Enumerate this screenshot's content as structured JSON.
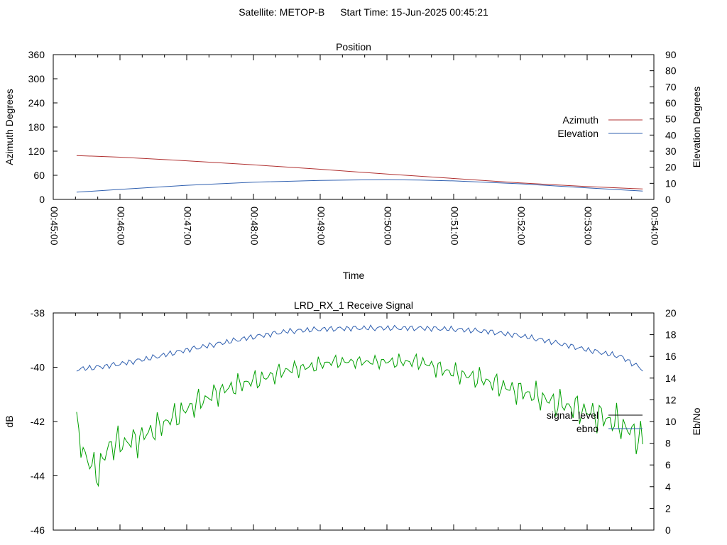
{
  "header": {
    "satellite": "Satellite: METOP-B",
    "start_time": "Start Time: 15-Jun-2025 00:45:21"
  },
  "chart_data": [
    {
      "type": "line",
      "title": "Position",
      "xlabel": "Time",
      "ylabel": "Azimuth Degrees",
      "y2label": "Elevation Degrees",
      "x_ticks": [
        "00:45:00",
        "00:46:00",
        "00:47:00",
        "00:48:00",
        "00:49:00",
        "00:50:00",
        "00:51:00",
        "00:52:00",
        "00:53:00",
        "00:54:00"
      ],
      "xlim": [
        "00:45:00",
        "00:54:00"
      ],
      "ylim": [
        0,
        360
      ],
      "y_ticks": [
        0,
        60,
        120,
        180,
        240,
        300,
        360
      ],
      "y2lim": [
        0,
        90
      ],
      "y2_ticks": [
        0,
        10,
        20,
        30,
        40,
        50,
        60,
        70,
        80,
        90
      ],
      "legend_position": "right",
      "grid": false,
      "series": [
        {
          "name": "Azimuth",
          "axis": "y",
          "color": "#b03030",
          "x": [
            "00:45:21",
            "00:46:00",
            "00:47:00",
            "00:48:00",
            "00:49:00",
            "00:50:00",
            "00:51:00",
            "00:52:00",
            "00:53:00",
            "00:53:50"
          ],
          "values": [
            109,
            105,
            96,
            86,
            75,
            63,
            52,
            41,
            32,
            26
          ]
        },
        {
          "name": "Elevation",
          "axis": "y2",
          "color": "#3060b0",
          "x": [
            "00:45:21",
            "00:46:00",
            "00:47:00",
            "00:48:00",
            "00:49:00",
            "00:49:30",
            "00:50:00",
            "00:50:30",
            "00:51:00",
            "00:52:00",
            "00:53:00",
            "00:53:50"
          ],
          "values": [
            4.5,
            6.2,
            8.8,
            10.7,
            11.8,
            12.1,
            12.2,
            12.0,
            11.5,
            9.7,
            7.2,
            5.2
          ]
        }
      ]
    },
    {
      "type": "line",
      "title": "LRD_RX_1 Receive Signal",
      "xlabel": "",
      "ylabel": "dB",
      "y2label": "Eb/No",
      "ylim": [
        -46,
        -38
      ],
      "y_ticks": [
        -46,
        -44,
        -42,
        -40,
        -38
      ],
      "y2lim": [
        0,
        20
      ],
      "y2_ticks": [
        0,
        2,
        4,
        6,
        8,
        10,
        12,
        14,
        16,
        18,
        20
      ],
      "legend_position": "right",
      "grid": false,
      "series": [
        {
          "name": "signal_level",
          "axis": "y",
          "color": "#00a000",
          "x": [
            "00:45:21",
            "00:45:30",
            "00:45:40",
            "00:45:50",
            "00:46:00",
            "00:46:15",
            "00:46:30",
            "00:46:50",
            "00:47:10",
            "00:47:30",
            "00:47:50",
            "00:48:10",
            "00:48:30",
            "00:48:50",
            "00:49:10",
            "00:49:30",
            "00:49:50",
            "00:50:10",
            "00:50:30",
            "00:50:50",
            "00:51:10",
            "00:51:30",
            "00:51:50",
            "00:52:10",
            "00:52:30",
            "00:52:50",
            "00:53:10",
            "00:53:30",
            "00:53:50"
          ],
          "values": [
            -42.3,
            -43.4,
            -43.9,
            -42.9,
            -42.8,
            -42.7,
            -42.3,
            -41.8,
            -41.3,
            -40.9,
            -40.6,
            -40.4,
            -40.1,
            -40.0,
            -39.8,
            -39.8,
            -39.8,
            -39.8,
            -39.8,
            -40.1,
            -40.3,
            -40.5,
            -40.8,
            -41.0,
            -41.3,
            -41.5,
            -41.8,
            -42.1,
            -42.7
          ]
        },
        {
          "name": "ebno",
          "axis": "y2",
          "color": "#3060b0",
          "x": [
            "00:45:21",
            "00:45:40",
            "00:46:00",
            "00:46:30",
            "00:47:00",
            "00:47:30",
            "00:48:00",
            "00:48:30",
            "00:49:00",
            "00:49:30",
            "00:50:00",
            "00:50:30",
            "00:51:00",
            "00:51:30",
            "00:52:00",
            "00:52:30",
            "00:53:00",
            "00:53:30",
            "00:53:50"
          ],
          "values": [
            14.8,
            15.0,
            15.3,
            15.9,
            16.6,
            17.2,
            17.8,
            18.3,
            18.5,
            18.6,
            18.6,
            18.6,
            18.5,
            18.3,
            17.9,
            17.3,
            16.6,
            16.0,
            14.8
          ]
        }
      ]
    }
  ]
}
